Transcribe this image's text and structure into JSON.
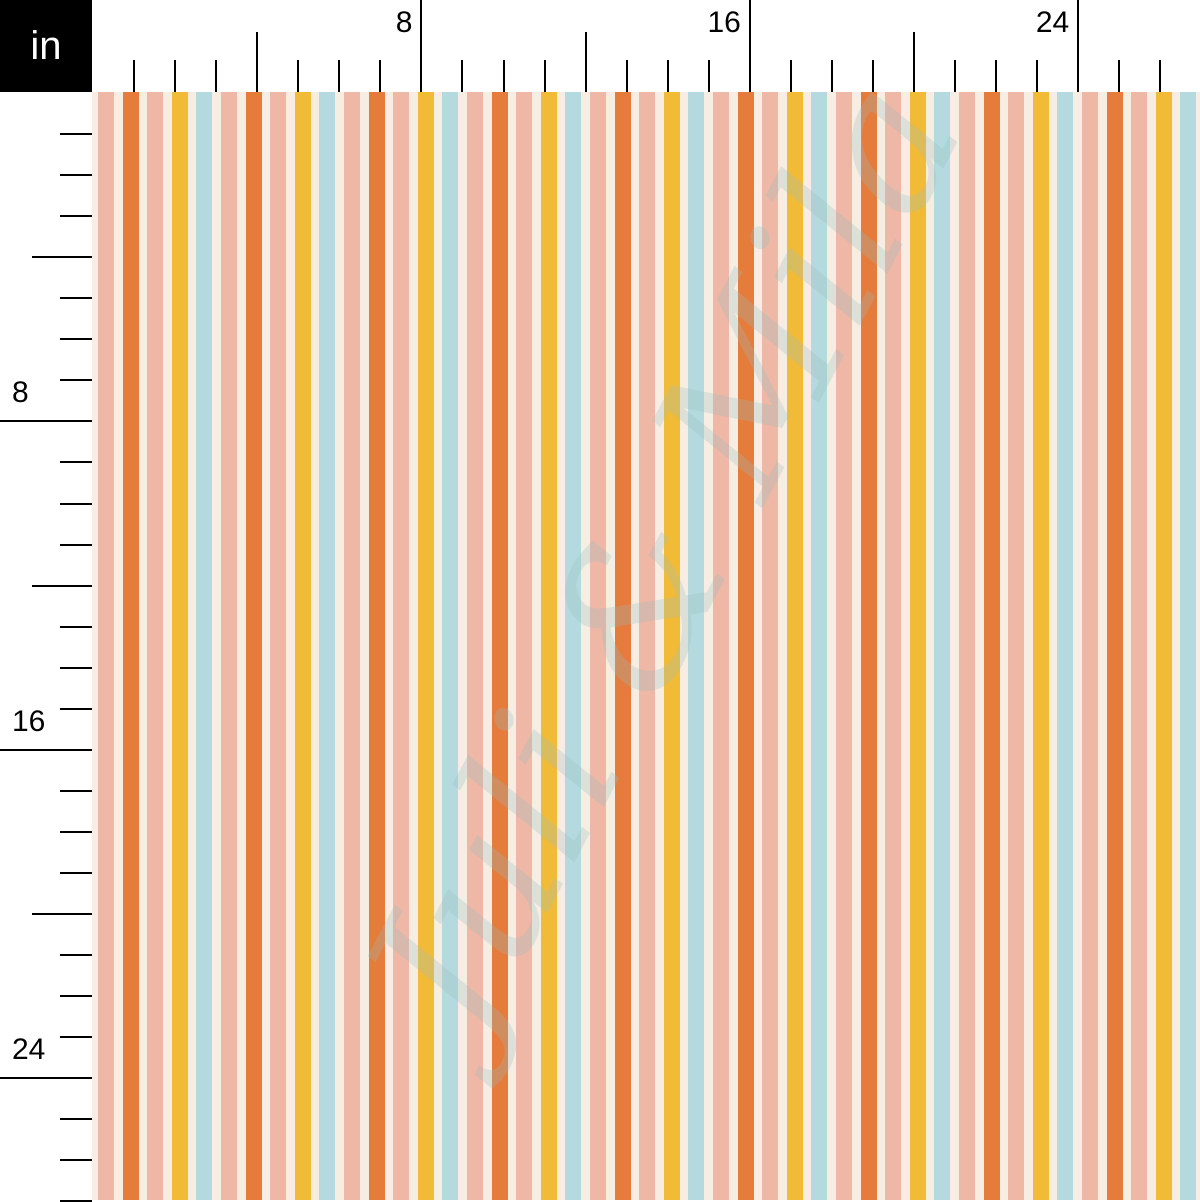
{
  "ruler": {
    "unit": "in",
    "top_labels": [
      {
        "inch": 8,
        "text": "8"
      },
      {
        "inch": 16,
        "text": "16"
      },
      {
        "inch": 24,
        "text": "24"
      }
    ],
    "left_labels": [
      {
        "inch": 8,
        "text": "8"
      },
      {
        "inch": 16,
        "text": "16"
      },
      {
        "inch": 24,
        "text": "24"
      }
    ],
    "inches_visible": 27
  },
  "pattern": {
    "background": "#f8ede2",
    "stripe_sequence": [
      "#efb8a6",
      "#e67c3c",
      "#efb8a6",
      "#f1bb38",
      "#b4dadf"
    ]
  },
  "watermark": "Juli & Mila"
}
